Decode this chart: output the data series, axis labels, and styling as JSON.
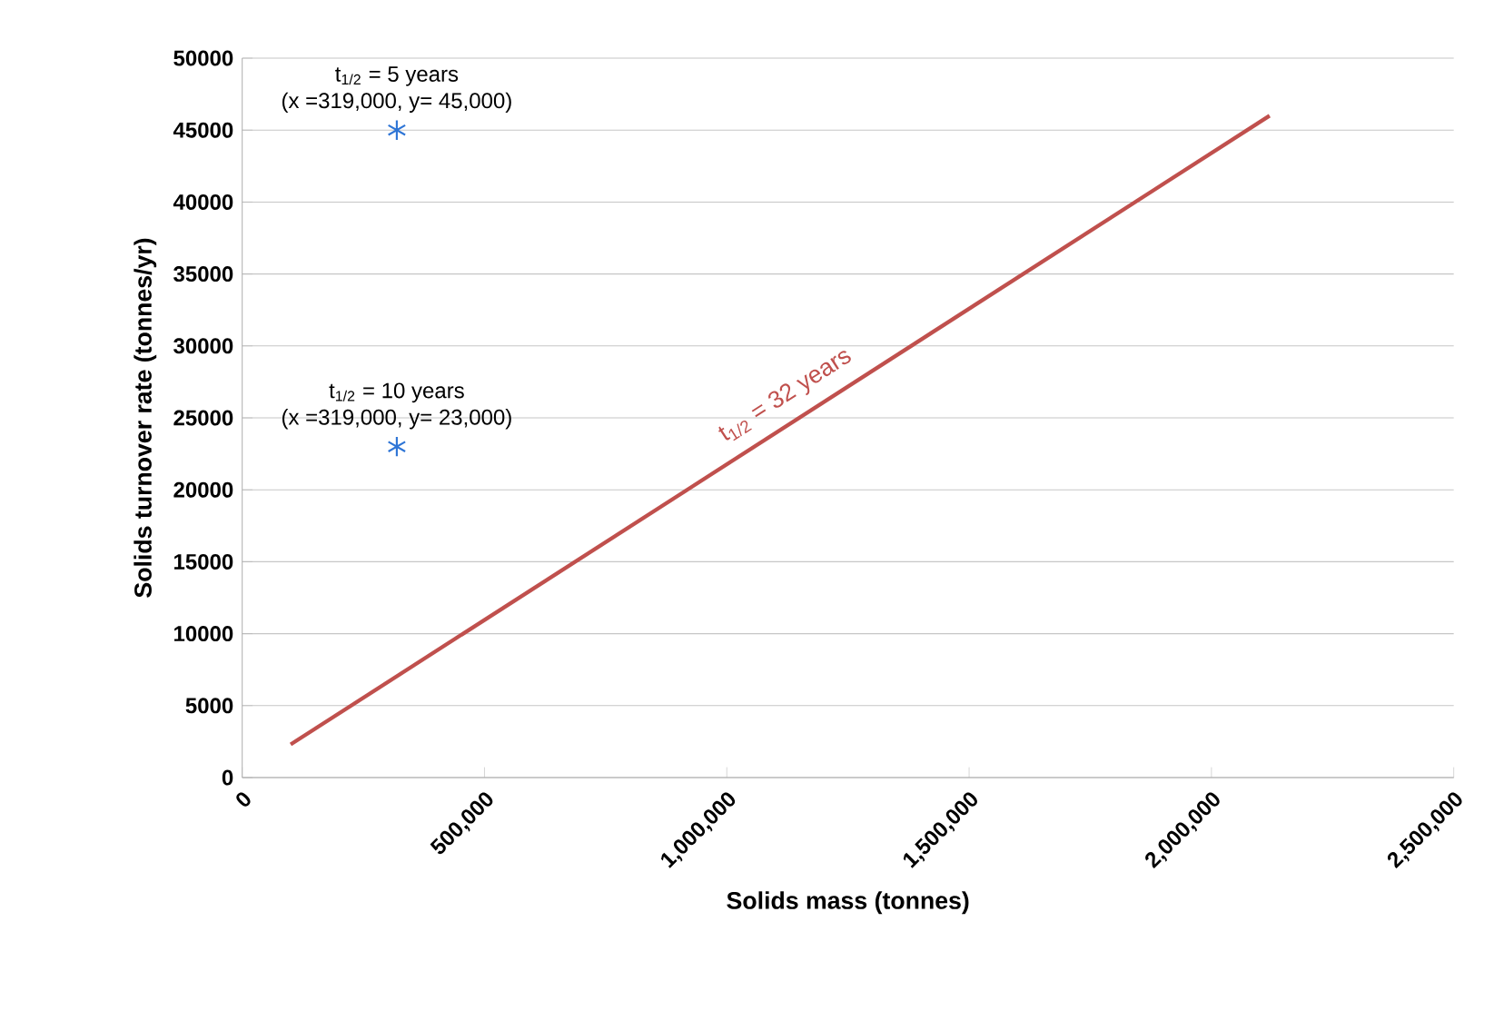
{
  "chart_data": {
    "type": "scatter",
    "xlabel": "Solids mass (tonnes)",
    "ylabel": "Solids turnover rate (tonnes/yr)",
    "series": [
      {
        "color": "#2e75d6",
        "marker": "cross",
        "x": [
          319000,
          319000
        ],
        "values": [
          45000,
          23000
        ]
      },
      {
        "type": "line",
        "color": "#c0504d",
        "marker": "none",
        "x": [
          100000,
          2120000
        ],
        "values": [
          2300,
          46000
        ]
      }
    ],
    "xlim": [
      0,
      2500000
    ],
    "ylim": [
      0,
      50000
    ],
    "xticks": [
      {
        "value": 0,
        "label": "0"
      },
      {
        "value": 500000,
        "label": "500,000"
      },
      {
        "value": 1000000,
        "label": "1,000,000"
      },
      {
        "value": 1500000,
        "label": "1,500,000"
      },
      {
        "value": 2000000,
        "label": "2,000,000"
      },
      {
        "value": 2500000,
        "label": "2,500,000"
      }
    ],
    "yticks": [
      0,
      5000,
      10000,
      15000,
      20000,
      25000,
      30000,
      35000,
      40000,
      45000,
      50000
    ],
    "grid": "y",
    "annotations": [
      "t$_{1/2}$ = 5 years",
      "(x =319,000,  y= 45,000)",
      "t$_{1/2}$ = 10 years",
      "(x =319,000,  y= 23,000)",
      "t$_{1/2}$ = 32 years"
    ]
  }
}
